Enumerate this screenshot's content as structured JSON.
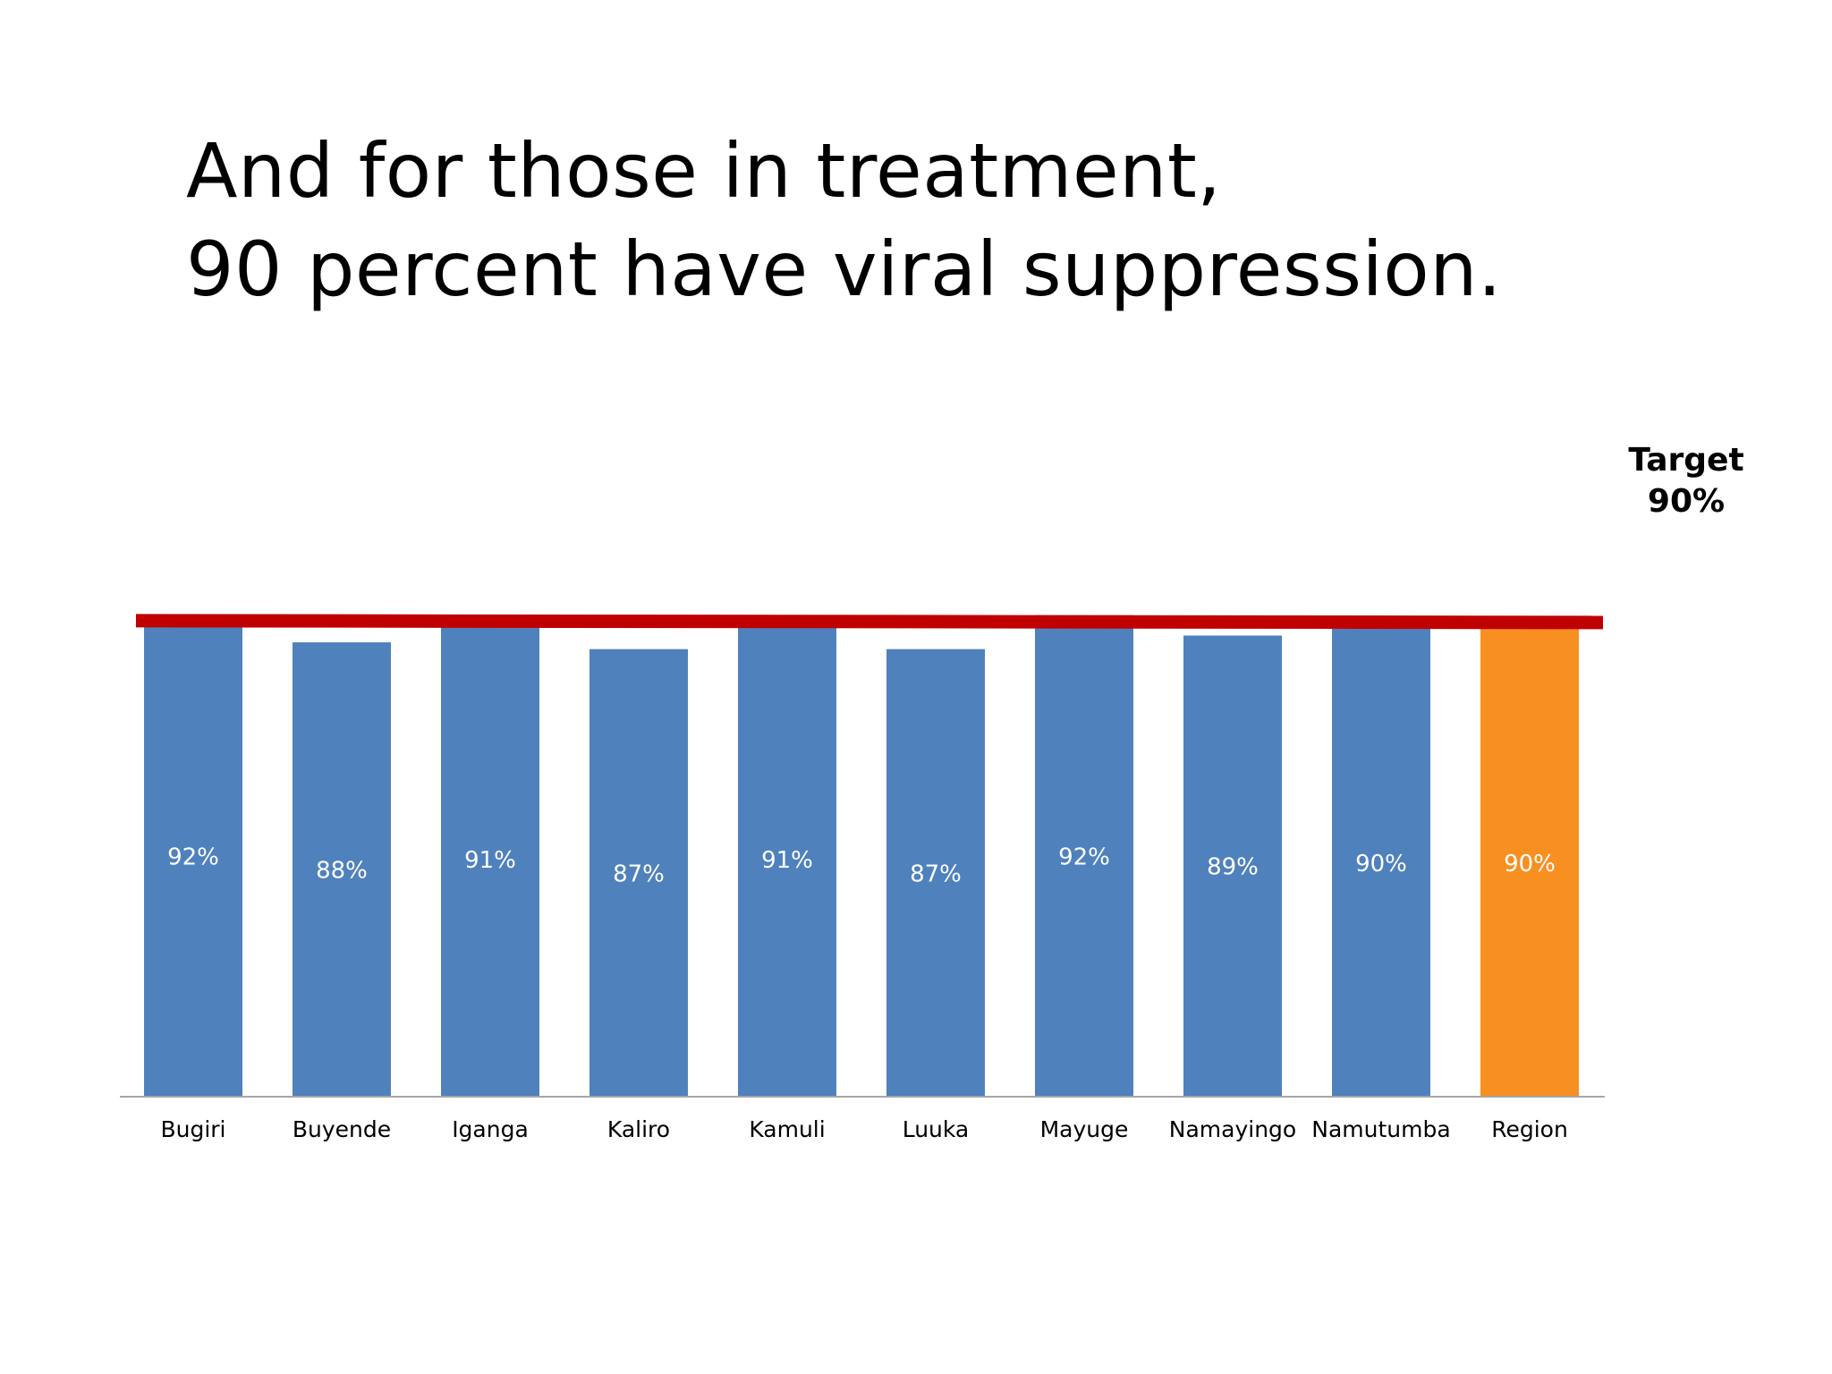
{
  "slide": {
    "title_line_1": "And for those in treatment,",
    "title_line_2": "90 percent have viral suppression."
  },
  "chart_data": {
    "type": "bar",
    "title": "And for those in treatment, 90 percent have viral suppression.",
    "xlabel": "",
    "ylabel": "",
    "categories": [
      "Bugiri",
      "Buyende",
      "Iganga",
      "Kaliro",
      "Kamuli",
      "Luuka",
      "Mayuge",
      "Namayingo",
      "Namutumba",
      "Region"
    ],
    "values": [
      92,
      88,
      91,
      87,
      91,
      87,
      92,
      89,
      90,
      90
    ],
    "data_labels": [
      "92%",
      "88%",
      "91%",
      "87%",
      "91%",
      "87%",
      "92%",
      "89%",
      "90%",
      "90%"
    ],
    "unit": "%",
    "colors": {
      "bar": "#4F81BD",
      "highlight_bar": "#F79021",
      "target_line": "#C00000",
      "axis": "#A6A6A6"
    },
    "highlight_category": "Region",
    "target": {
      "value": 90,
      "label_line_1": "Target",
      "label_line_2": "90%"
    },
    "grid": false,
    "legend": "none"
  }
}
